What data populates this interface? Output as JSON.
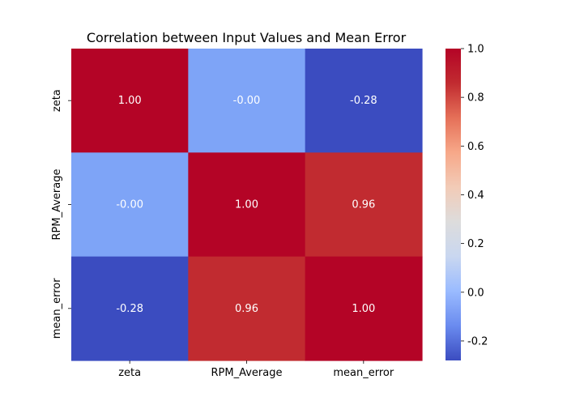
{
  "chart_data": {
    "type": "heatmap",
    "title": "Correlation between Input Values and Mean Error",
    "x_labels": [
      "zeta",
      "RPM_Average",
      "mean_error"
    ],
    "y_labels": [
      "zeta",
      "RPM_Average",
      "mean_error"
    ],
    "values": [
      [
        1.0,
        -0.0,
        -0.28
      ],
      [
        -0.0,
        1.0,
        0.96
      ],
      [
        -0.28,
        0.96,
        1.0
      ]
    ],
    "annotations": [
      [
        "1.00",
        "-0.00",
        "-0.28"
      ],
      [
        "-0.00",
        "1.00",
        "0.96"
      ],
      [
        "-0.28",
        "0.96",
        "1.00"
      ]
    ],
    "colormap": "coolwarm",
    "colorbar": {
      "vmin": -0.28,
      "vmax": 1.0,
      "ticks": [
        "1.0",
        "0.8",
        "0.6",
        "0.4",
        "0.2",
        "0.0",
        "-0.2"
      ],
      "tick_values": [
        1.0,
        0.8,
        0.6,
        0.4,
        0.2,
        0.0,
        -0.2
      ]
    },
    "cell_colors": [
      [
        "#b40426",
        "#7ea4f7",
        "#3b4cc0"
      ],
      [
        "#7ea4f7",
        "#b40426",
        "#c12b30"
      ],
      [
        "#3b4cc0",
        "#c12b30",
        "#b40426"
      ]
    ],
    "colorbar_stops": [
      "#3b4cc0",
      "#6a8bef",
      "#9abbff",
      "#c9d7f0",
      "#dddcdc",
      "#f2cbb7",
      "#f7a889",
      "#e57058",
      "#c12b30",
      "#b40426"
    ]
  }
}
